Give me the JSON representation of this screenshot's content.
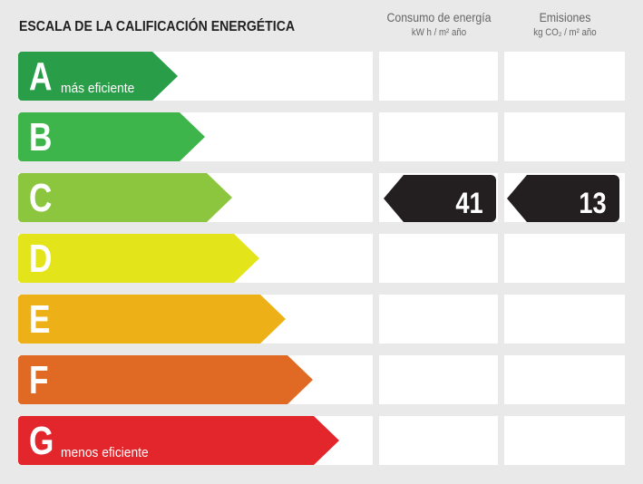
{
  "title": "ESCALA DE LA CALIFICACIÓN ENERGÉTICA",
  "columns": [
    {
      "heading": "Consumo de energía",
      "unit": "kW h / m² año"
    },
    {
      "heading": "Emisiones",
      "unit": "kg CO₂ / m² año"
    }
  ],
  "ratings": [
    {
      "letter": "A",
      "label": "más eficiente",
      "color": "#2a9d48"
    },
    {
      "letter": "B",
      "label": "",
      "color": "#3db54a"
    },
    {
      "letter": "C",
      "label": "",
      "color": "#8cc63f"
    },
    {
      "letter": "D",
      "label": "",
      "color": "#e4e41a"
    },
    {
      "letter": "E",
      "label": "",
      "color": "#eeb017"
    },
    {
      "letter": "F",
      "label": "",
      "color": "#e06a24"
    },
    {
      "letter": "G",
      "label": "menos eficiente",
      "color": "#e2262b"
    }
  ],
  "result": {
    "rating": "C",
    "consumo": "41",
    "emisiones": "13",
    "marker_color": "#231f20"
  }
}
